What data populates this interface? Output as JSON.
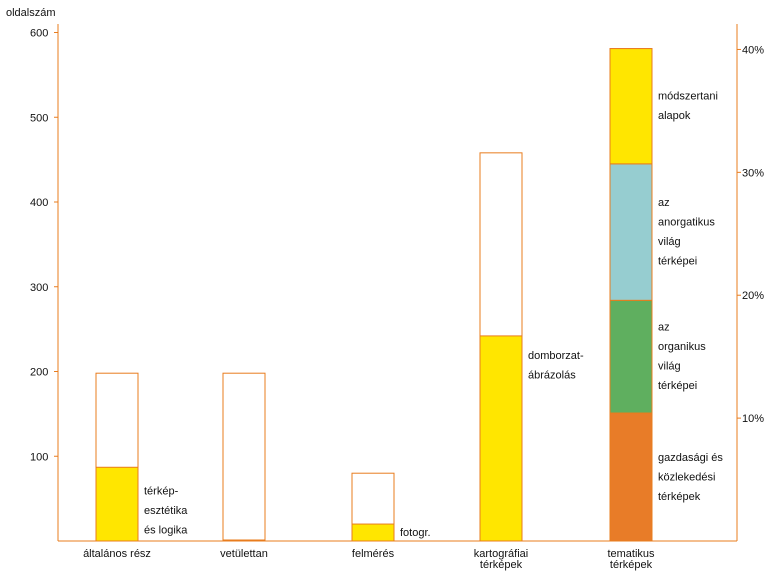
{
  "chart_data": {
    "type": "bar",
    "stacked": true,
    "ylabel": "oldalszám",
    "ylim": [
      0,
      615
    ],
    "y_ticks": [
      100,
      200,
      300,
      400,
      500,
      600
    ],
    "y2_ticks": [
      "10%",
      "20%",
      "30%",
      "40%"
    ],
    "y2_tick_values": [
      0.1,
      0.2,
      0.3,
      0.4
    ],
    "y2_max_pages": 1450,
    "grid": false,
    "colors": {
      "axis": "#e87c1e",
      "yellow": "#ffe600",
      "teal": "#96cdd0",
      "green": "#5faf5f",
      "orange": "#e87c28",
      "white": "#ffffff"
    },
    "categories": [
      {
        "label": [
          "általános rész"
        ],
        "total": 198,
        "segments": [
          {
            "value": 87,
            "color": "yellow",
            "label": [
              "térkép-",
              "esztétika",
              "és logika"
            ]
          }
        ]
      },
      {
        "label": [
          "vetülettan"
        ],
        "total": 198,
        "segments": []
      },
      {
        "label": [
          "felmérés"
        ],
        "total": 80,
        "segments": [
          {
            "value": 20,
            "color": "yellow",
            "label": [
              "fotogr."
            ]
          }
        ]
      },
      {
        "label": [
          "kartográfiai",
          "térképek"
        ],
        "total": 458,
        "segments": [
          {
            "value": 242,
            "color": "yellow",
            "label": [
              "domborzat-",
              "ábrázolás"
            ]
          }
        ]
      },
      {
        "label": [
          "tematikus",
          "térképek"
        ],
        "total": 581,
        "segments": [
          {
            "value": 151,
            "color": "orange",
            "label": [
              "gazdasági és",
              "közlekedési",
              "térképek"
            ]
          },
          {
            "value": 133,
            "color": "green",
            "label": [
              "az",
              "organikus",
              "világ",
              "térképei"
            ]
          },
          {
            "value": 161,
            "color": "teal",
            "label": [
              "az",
              "anorgatikus",
              "világ",
              "térképei"
            ]
          },
          {
            "value": 136,
            "color": "yellow",
            "label": [
              "módszertani",
              "alapok"
            ]
          }
        ]
      }
    ]
  }
}
